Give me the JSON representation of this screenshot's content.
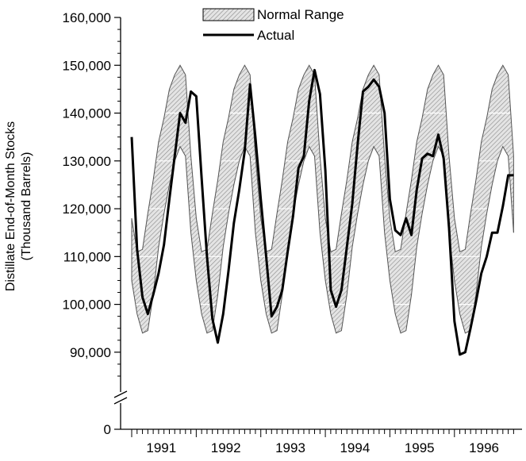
{
  "chart_data": {
    "type": "area",
    "title": "",
    "ylabel_lines": [
      "Distillate End-of-Month Stocks",
      "(Thousand Barrels)"
    ],
    "xlabel": "",
    "ylim": [
      85000,
      160000
    ],
    "y_axis_break": true,
    "y_zero_label": "0",
    "y_ticks": [
      90000,
      100000,
      110000,
      120000,
      130000,
      140000,
      150000,
      160000
    ],
    "y_tick_labels": [
      "90,000",
      "100,000",
      "110,000",
      "120,000",
      "130,000",
      "140,000",
      "150,000",
      "160,000"
    ],
    "x_period": "monthly, Jan 1991 – Dec 1996",
    "year_labels": [
      "1991",
      "1992",
      "1993",
      "1994",
      "1995",
      "1996"
    ],
    "grid": false,
    "legend_position": "top-center",
    "legend": {
      "band_label": "Normal Range",
      "line_label": "Actual"
    },
    "normal_range": {
      "upper": [
        118000,
        111000,
        111500,
        119000,
        126000,
        134000,
        139000,
        145000,
        148000,
        150000,
        148000,
        131000
      ],
      "lower": [
        105000,
        98000,
        94000,
        94500,
        102000,
        112000,
        119000,
        125000,
        130000,
        133000,
        131000,
        115000
      ]
    },
    "series": [
      {
        "name": "Actual",
        "x": [
          "1991-01",
          "1991-02",
          "1991-03",
          "1991-04",
          "1991-05",
          "1991-06",
          "1991-07",
          "1991-08",
          "1991-09",
          "1991-10",
          "1991-11",
          "1991-12",
          "1992-01",
          "1992-02",
          "1992-03",
          "1992-04",
          "1992-05",
          "1992-06",
          "1992-07",
          "1992-08",
          "1992-09",
          "1992-10",
          "1992-11",
          "1992-12",
          "1993-01",
          "1993-02",
          "1993-03",
          "1993-04",
          "1993-05",
          "1993-06",
          "1993-07",
          "1993-08",
          "1993-09",
          "1993-10",
          "1993-11",
          "1993-12",
          "1994-01",
          "1994-02",
          "1994-03",
          "1994-04",
          "1994-05",
          "1994-06",
          "1994-07",
          "1994-08",
          "1994-09",
          "1994-10",
          "1994-11",
          "1994-12",
          "1995-01",
          "1995-02",
          "1995-03",
          "1995-04",
          "1995-05",
          "1995-06",
          "1995-07",
          "1995-08",
          "1995-09",
          "1995-10",
          "1995-11",
          "1995-12",
          "1996-01",
          "1996-02",
          "1996-03",
          "1996-04",
          "1996-05",
          "1996-06",
          "1996-07",
          "1996-08",
          "1996-09",
          "1996-10",
          "1996-11",
          "1996-12"
        ],
        "values": [
          135000,
          111500,
          101500,
          98000,
          102000,
          106500,
          112500,
          122000,
          131000,
          140000,
          138000,
          144500,
          143500,
          126500,
          110000,
          97000,
          92000,
          98000,
          107000,
          117000,
          124000,
          132000,
          146000,
          135000,
          122000,
          110000,
          97500,
          99500,
          103000,
          111000,
          118500,
          128500,
          131000,
          142500,
          149000,
          144000,
          128000,
          103000,
          99500,
          103000,
          112000,
          121000,
          133500,
          144500,
          145500,
          147000,
          145500,
          140000,
          122000,
          115500,
          114500,
          118000,
          114500,
          124000,
          130500,
          131500,
          131000,
          135500,
          130500,
          116000,
          96500,
          89500,
          90000,
          95000,
          100500,
          106500,
          110000,
          115000,
          115000,
          120500,
          127000,
          127000
        ]
      }
    ]
  }
}
